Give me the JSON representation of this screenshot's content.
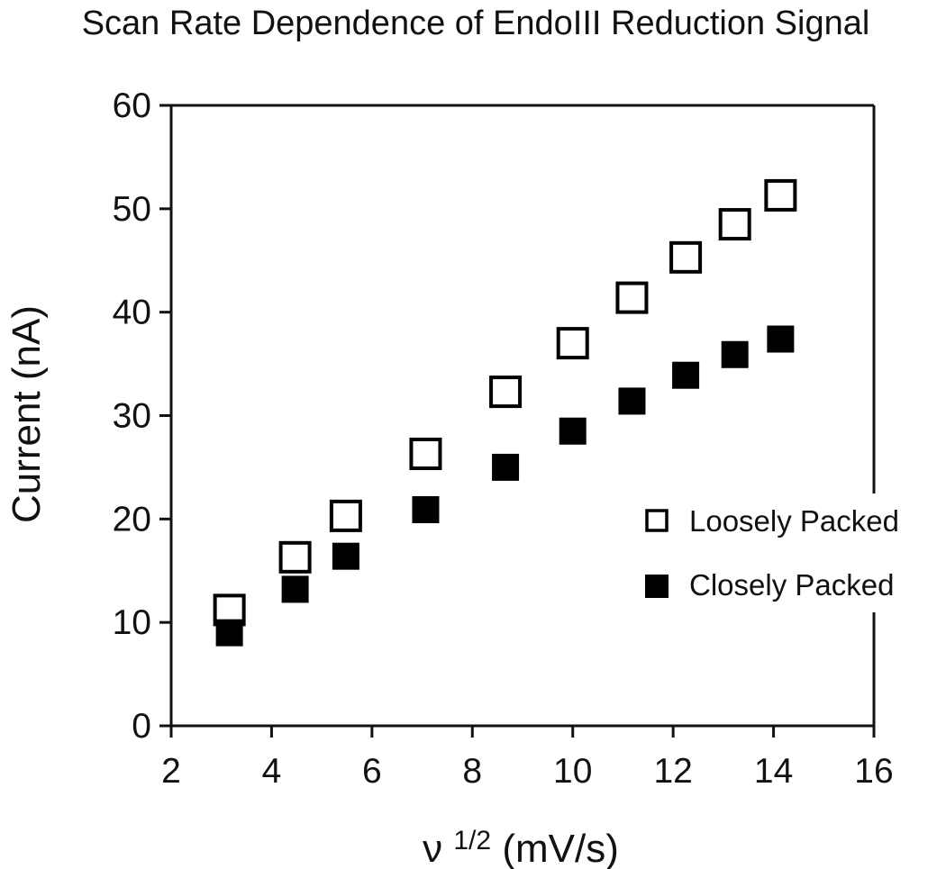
{
  "chart_data": {
    "type": "scatter",
    "title": "Scan Rate Dependence of EndoIII Reduction Signal",
    "xlabel": "ν ",
    "xlabel_superscript": "1/2",
    "xlabel_units": " (mV/s)",
    "ylabel": "Current (nA)",
    "xlim": [
      2,
      16
    ],
    "ylim": [
      0,
      60
    ],
    "xticks": [
      2,
      4,
      6,
      8,
      10,
      12,
      14,
      16
    ],
    "yticks": [
      0,
      10,
      20,
      30,
      40,
      50,
      60
    ],
    "grid": false,
    "legend_position": "right-middle",
    "series": [
      {
        "name": "Loosely Packed",
        "marker": "open-square",
        "x": [
          3.16,
          4.47,
          5.48,
          7.07,
          8.66,
          10.0,
          11.18,
          12.25,
          13.23,
          14.14
        ],
        "y": [
          11.2,
          16.3,
          20.3,
          26.3,
          32.3,
          37.0,
          41.4,
          45.3,
          48.5,
          51.3
        ]
      },
      {
        "name": "Closely Packed",
        "marker": "filled-square",
        "x": [
          3.16,
          4.47,
          5.48,
          7.07,
          8.66,
          10.0,
          11.18,
          12.25,
          13.23,
          14.14
        ],
        "y": [
          9.0,
          13.2,
          16.4,
          20.9,
          25.0,
          28.5,
          31.4,
          33.9,
          35.9,
          37.4
        ]
      }
    ]
  },
  "colors": {
    "axis": "#111111",
    "marker": "#000000",
    "background": "#ffffff"
  }
}
